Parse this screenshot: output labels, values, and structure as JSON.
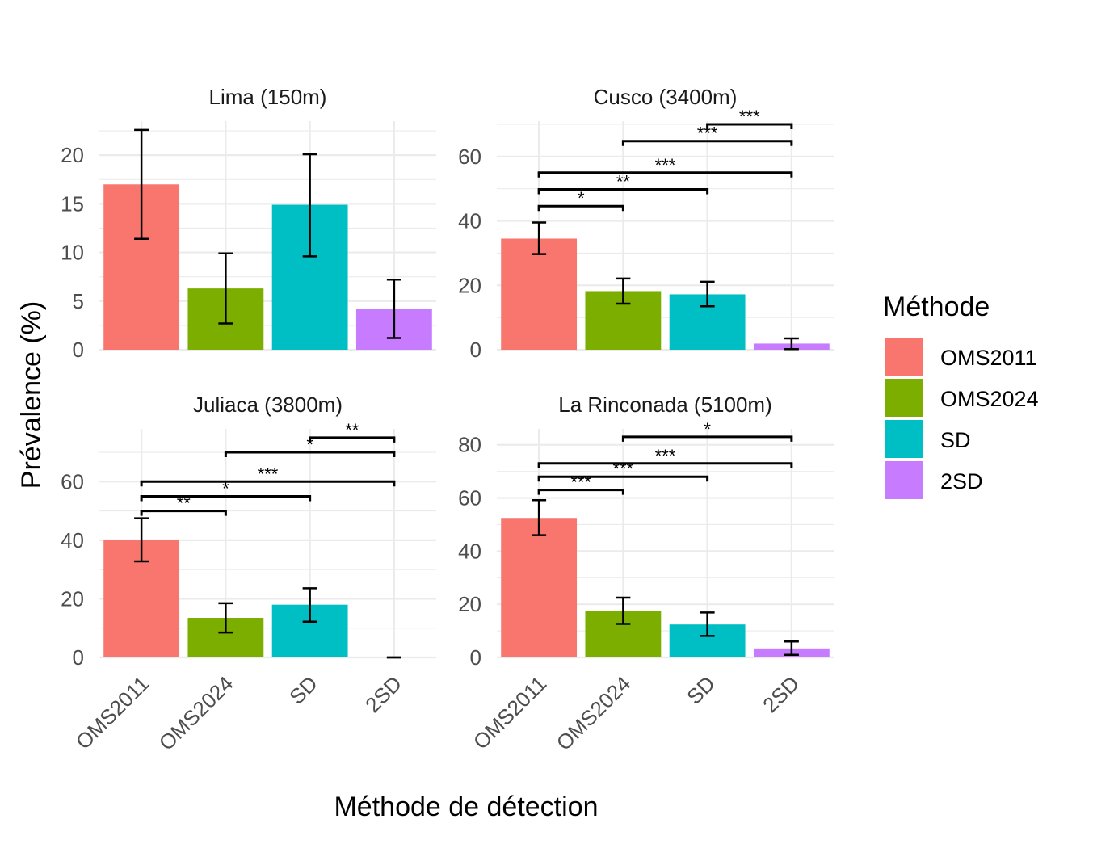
{
  "chart_data": {
    "type": "bar",
    "layout": "facet-grid-2x2",
    "xlabel": "Méthode de détection",
    "ylabel": "Prévalence (%)",
    "legend": {
      "title": "Méthode",
      "placement": "right",
      "entries": [
        {
          "label": "OMS2011",
          "color": "#F8766D"
        },
        {
          "label": "OMS2024",
          "color": "#7CAE00"
        },
        {
          "label": "SD",
          "color": "#00BFC4"
        },
        {
          "label": "2SD",
          "color": "#C77CFF"
        }
      ]
    },
    "categories": [
      "OMS2011",
      "OMS2024",
      "SD",
      "2SD"
    ],
    "grid": true,
    "panels": [
      {
        "title": "Lima (150m)",
        "ylim": [
          0,
          23.5
        ],
        "yticks": [
          0,
          5,
          10,
          15,
          20
        ],
        "values": [
          17.0,
          6.3,
          14.9,
          4.2
        ],
        "error_low": [
          11.4,
          2.7,
          9.6,
          1.2
        ],
        "error_high": [
          22.6,
          9.9,
          20.1,
          7.2
        ],
        "comparisons": []
      },
      {
        "title": "Cusco (3400m)",
        "ylim": [
          0,
          71
        ],
        "yticks": [
          0,
          20,
          40,
          60
        ],
        "values": [
          34.5,
          18.2,
          17.2,
          1.9
        ],
        "error_low": [
          29.7,
          14.3,
          13.5,
          0.2
        ],
        "error_high": [
          39.5,
          22.1,
          21.1,
          3.5
        ],
        "comparisons": [
          {
            "from": "OMS2011",
            "to": "OMS2024",
            "y": 44.6,
            "label": "*"
          },
          {
            "from": "OMS2011",
            "to": "SD",
            "y": 49.8,
            "label": "**"
          },
          {
            "from": "OMS2011",
            "to": "2SD",
            "y": 55.0,
            "label": "***"
          },
          {
            "from": "OMS2024",
            "to": "2SD",
            "y": 64.8,
            "label": "***"
          },
          {
            "from": "SD",
            "to": "2SD",
            "y": 70.0,
            "label": "***"
          }
        ]
      },
      {
        "title": "Juliaca (3800m)",
        "ylim": [
          0,
          78
        ],
        "yticks": [
          0,
          20,
          40,
          60
        ],
        "values": [
          40.2,
          13.5,
          18.0,
          0.0
        ],
        "error_low": [
          32.8,
          8.5,
          12.2,
          0.0
        ],
        "error_high": [
          47.5,
          18.5,
          23.6,
          0.0
        ],
        "comparisons": [
          {
            "from": "OMS2011",
            "to": "OMS2024",
            "y": 50.0,
            "label": "**"
          },
          {
            "from": "OMS2011",
            "to": "SD",
            "y": 55.0,
            "label": "*"
          },
          {
            "from": "OMS2011",
            "to": "2SD",
            "y": 60.0,
            "label": "***"
          },
          {
            "from": "OMS2024",
            "to": "2SD",
            "y": 70.0,
            "label": "*"
          },
          {
            "from": "SD",
            "to": "2SD",
            "y": 75.0,
            "label": "**"
          }
        ]
      },
      {
        "title": "La Rinconada (5100m)",
        "ylim": [
          0,
          86
        ],
        "yticks": [
          0,
          20,
          40,
          60,
          80
        ],
        "values": [
          52.5,
          17.5,
          12.4,
          3.4
        ],
        "error_low": [
          46.0,
          12.6,
          8.1,
          1.0
        ],
        "error_high": [
          59.2,
          22.5,
          16.9,
          6.0
        ],
        "comparisons": [
          {
            "from": "OMS2011",
            "to": "OMS2024",
            "y": 63.0,
            "label": "***"
          },
          {
            "from": "OMS2011",
            "to": "SD",
            "y": 68.0,
            "label": "***"
          },
          {
            "from": "OMS2011",
            "to": "2SD",
            "y": 73.0,
            "label": "***"
          },
          {
            "from": "OMS2024",
            "to": "2SD",
            "y": 83.0,
            "label": "*"
          }
        ]
      }
    ]
  }
}
